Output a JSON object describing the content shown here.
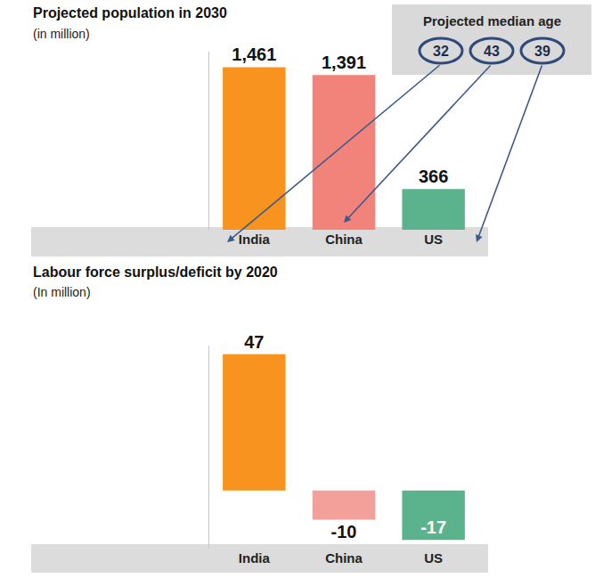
{
  "chart_data": [
    {
      "type": "bar",
      "title": "Projected population in 2030",
      "subtitle": "(in million)",
      "categories": [
        "India",
        "China",
        "US"
      ],
      "values": [
        1461,
        1391,
        366
      ],
      "value_labels": [
        "1,461",
        "1,391",
        "366"
      ],
      "colors": [
        "#f7931e",
        "#f2837b",
        "#5bb38e"
      ],
      "ylim": [
        0,
        1600
      ],
      "data_labels": true,
      "tick_labels": "x",
      "median_age": {
        "title": "Projected median age",
        "values": [
          32,
          43,
          39
        ]
      }
    },
    {
      "type": "bar",
      "title": "Labour force surplus/deficit by 2020",
      "subtitle": "(In million)",
      "categories": [
        "India",
        "China",
        "US"
      ],
      "values": [
        47,
        -10,
        -17
      ],
      "colors": [
        "#f7931e",
        "#f4a09a",
        "#5bb38e"
      ],
      "ylim": [
        -20,
        50
      ],
      "data_labels": true,
      "tick_labels": "x"
    }
  ]
}
